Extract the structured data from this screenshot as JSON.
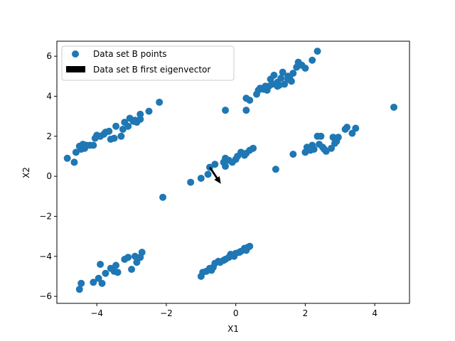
{
  "chart_data": {
    "type": "scatter",
    "xlabel": "X1",
    "ylabel": "X2",
    "xlim": [
      -5.15,
      5.0
    ],
    "ylim": [
      -6.35,
      6.75
    ],
    "xticks": [
      -4,
      -2,
      0,
      2,
      4
    ],
    "yticks": [
      -6,
      -4,
      -2,
      0,
      2,
      4,
      6
    ],
    "grid": false,
    "legend_position": "top-left",
    "colors": {
      "points": "#1f77b4",
      "arrow": "#000000"
    },
    "series": [
      {
        "name": "Data set B points",
        "kind": "scatter",
        "points": [
          [
            -4.85,
            0.9
          ],
          [
            -4.65,
            0.7
          ],
          [
            -4.6,
            1.2
          ],
          [
            -4.5,
            1.5
          ],
          [
            -4.45,
            1.35
          ],
          [
            -4.4,
            1.6
          ],
          [
            -4.35,
            1.4
          ],
          [
            -4.3,
            1.55
          ],
          [
            -4.2,
            1.55
          ],
          [
            -4.1,
            1.55
          ],
          [
            -4.05,
            1.9
          ],
          [
            -4.0,
            2.05
          ],
          [
            -3.9,
            2.0
          ],
          [
            -3.8,
            2.1
          ],
          [
            -3.75,
            2.2
          ],
          [
            -3.65,
            2.25
          ],
          [
            -3.6,
            1.85
          ],
          [
            -3.5,
            1.9
          ],
          [
            -3.45,
            2.5
          ],
          [
            -3.3,
            2.0
          ],
          [
            -3.25,
            2.35
          ],
          [
            -3.2,
            2.7
          ],
          [
            -3.1,
            2.5
          ],
          [
            -3.05,
            2.9
          ],
          [
            -2.95,
            2.75
          ],
          [
            -2.9,
            2.8
          ],
          [
            -2.85,
            2.7
          ],
          [
            -2.75,
            2.85
          ],
          [
            -2.75,
            3.1
          ],
          [
            -2.5,
            3.25
          ],
          [
            -2.2,
            3.7
          ],
          [
            -0.3,
            3.3
          ],
          [
            0.3,
            3.3
          ],
          [
            0.3,
            3.9
          ],
          [
            0.4,
            3.8
          ],
          [
            0.6,
            4.1
          ],
          [
            0.65,
            4.3
          ],
          [
            0.7,
            4.4
          ],
          [
            0.8,
            4.35
          ],
          [
            0.9,
            4.3
          ],
          [
            0.95,
            4.5
          ],
          [
            1.0,
            4.85
          ],
          [
            1.05,
            4.6
          ],
          [
            1.1,
            5.05
          ],
          [
            1.2,
            4.7
          ],
          [
            1.25,
            4.55
          ],
          [
            1.3,
            4.9
          ],
          [
            1.35,
            5.2
          ],
          [
            1.4,
            4.6
          ],
          [
            1.5,
            5.0
          ],
          [
            1.55,
            4.9
          ],
          [
            1.6,
            4.75
          ],
          [
            1.65,
            5.15
          ],
          [
            1.75,
            5.45
          ],
          [
            1.8,
            5.7
          ],
          [
            1.9,
            5.55
          ],
          [
            2.0,
            5.4
          ],
          [
            2.2,
            5.8
          ],
          [
            2.35,
            6.25
          ],
          [
            1.5,
            4.85
          ],
          [
            1.2,
            4.5
          ],
          [
            0.85,
            4.5
          ],
          [
            4.55,
            3.45
          ],
          [
            -2.1,
            -1.05
          ],
          [
            -1.3,
            -0.3
          ],
          [
            -1.0,
            -0.1
          ],
          [
            -0.8,
            0.1
          ],
          [
            -0.75,
            0.45
          ],
          [
            -0.6,
            0.6
          ],
          [
            -0.35,
            0.7
          ],
          [
            -0.3,
            0.9
          ],
          [
            -0.3,
            0.5
          ],
          [
            -0.2,
            0.8
          ],
          [
            -0.1,
            0.7
          ],
          [
            0.0,
            0.85
          ],
          [
            0.05,
            1.0
          ],
          [
            0.15,
            1.2
          ],
          [
            0.25,
            1.05
          ],
          [
            0.3,
            1.15
          ],
          [
            0.4,
            1.3
          ],
          [
            0.5,
            1.4
          ],
          [
            1.15,
            0.35
          ],
          [
            1.65,
            1.1
          ],
          [
            2.0,
            1.2
          ],
          [
            2.05,
            1.45
          ],
          [
            2.15,
            1.3
          ],
          [
            2.2,
            1.55
          ],
          [
            2.25,
            1.35
          ],
          [
            2.35,
            2.0
          ],
          [
            2.4,
            1.6
          ],
          [
            2.45,
            2.0
          ],
          [
            2.5,
            1.45
          ],
          [
            2.55,
            1.35
          ],
          [
            2.6,
            1.25
          ],
          [
            2.75,
            1.4
          ],
          [
            2.8,
            1.95
          ],
          [
            2.85,
            1.65
          ],
          [
            2.9,
            1.75
          ],
          [
            2.95,
            1.95
          ],
          [
            3.15,
            2.35
          ],
          [
            3.2,
            2.45
          ],
          [
            3.35,
            2.15
          ],
          [
            3.45,
            2.4
          ],
          [
            -4.5,
            -5.65
          ],
          [
            -4.45,
            -5.35
          ],
          [
            -4.1,
            -5.3
          ],
          [
            -3.95,
            -5.1
          ],
          [
            -3.9,
            -4.4
          ],
          [
            -3.85,
            -5.35
          ],
          [
            -3.75,
            -4.85
          ],
          [
            -3.6,
            -4.6
          ],
          [
            -3.5,
            -4.75
          ],
          [
            -3.45,
            -4.45
          ],
          [
            -3.4,
            -4.8
          ],
          [
            -3.2,
            -4.15
          ],
          [
            -3.1,
            -4.05
          ],
          [
            -3.0,
            -4.65
          ],
          [
            -2.9,
            -4.0
          ],
          [
            -2.85,
            -4.3
          ],
          [
            -2.75,
            -4.05
          ],
          [
            -2.7,
            -3.8
          ],
          [
            -1.0,
            -5.0
          ],
          [
            -0.95,
            -4.8
          ],
          [
            -0.85,
            -4.75
          ],
          [
            -0.75,
            -4.6
          ],
          [
            -0.7,
            -4.7
          ],
          [
            -0.65,
            -4.55
          ],
          [
            -0.6,
            -4.35
          ],
          [
            -0.5,
            -4.25
          ],
          [
            -0.45,
            -4.3
          ],
          [
            -0.35,
            -4.2
          ],
          [
            -0.3,
            -4.15
          ],
          [
            -0.2,
            -4.05
          ],
          [
            -0.15,
            -3.9
          ],
          [
            -0.05,
            -4.0
          ],
          [
            0.0,
            -3.85
          ],
          [
            0.1,
            -3.8
          ],
          [
            0.15,
            -3.75
          ],
          [
            0.25,
            -3.6
          ],
          [
            0.35,
            -3.55
          ],
          [
            0.4,
            -3.5
          ],
          [
            0.3,
            -3.7
          ]
        ]
      },
      {
        "name": "Data set B first eigenvector",
        "kind": "arrow",
        "start": [
          -0.75,
          0.45
        ],
        "end": [
          -0.43,
          -0.38
        ]
      }
    ]
  }
}
